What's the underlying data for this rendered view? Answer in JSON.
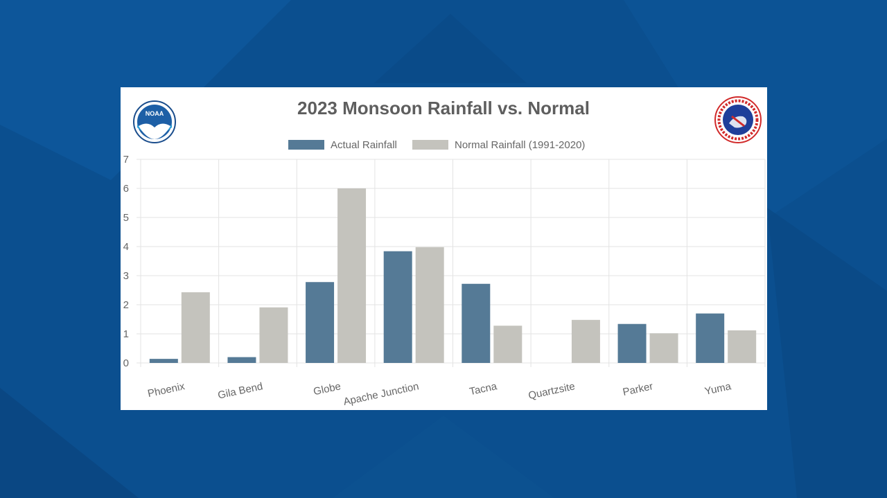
{
  "colors": {
    "background": "#0b4f8f",
    "card": "#ffffff",
    "actual": "#557a96",
    "normal": "#c4c3bd",
    "grid": "#e3e3e3",
    "title": "#5e5e5e",
    "text": "#666666"
  },
  "logos": {
    "left": {
      "icon": "noaa-logo-icon",
      "text": "NOAA"
    },
    "right": {
      "icon": "nws-logo-icon",
      "text": "NATIONAL WEATHER SERVICE"
    }
  },
  "chart_data": {
    "type": "bar",
    "title": "2023 Monsoon Rainfall vs. Normal",
    "xlabel": "",
    "ylabel": "",
    "ylim": [
      0,
      7
    ],
    "yticks": [
      "0",
      "1",
      "2",
      "3",
      "4",
      "5",
      "6",
      "7"
    ],
    "grid": true,
    "legend_position": "top",
    "categories": [
      "Phoenix",
      "Gila Bend",
      "Globe",
      "Apache Junction",
      "Tacna",
      "Quartzsite",
      "Parker",
      "Yuma"
    ],
    "series": [
      {
        "name": "Actual Rainfall",
        "color": "#557a96",
        "values": [
          0.14,
          0.2,
          2.78,
          3.84,
          2.72,
          0,
          1.34,
          1.7
        ]
      },
      {
        "name": "Normal Rainfall (1991-2020)",
        "color": "#c4c3bd",
        "values": [
          2.43,
          1.91,
          6.0,
          3.98,
          1.28,
          1.48,
          1.02,
          1.12
        ]
      }
    ]
  }
}
